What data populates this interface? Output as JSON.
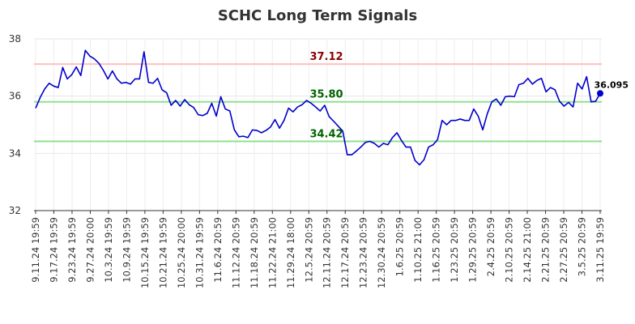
{
  "chart_data": {
    "type": "line",
    "title": "SCHC Long Term Signals",
    "xlabel": "",
    "ylabel": "",
    "ylim": [
      32,
      38
    ],
    "yticks": [
      32,
      34,
      36,
      38
    ],
    "grid": true,
    "x_tick_labels": [
      "9.11.24 19:59",
      "9.17.24 19:59",
      "9.23.24 19:59",
      "9.27.24 20:00",
      "10.3.24 19:59",
      "10.9.24 19:59",
      "10.15.24 19:59",
      "10.21.24 19:59",
      "10.25.24 20:00",
      "10.31.24 19:59",
      "11.6.24 20:59",
      "11.12.24 20:59",
      "11.18.24 20:59",
      "11.22.24 21:00",
      "11.29.24 18:00",
      "12.5.24 20:59",
      "12.11.24 20:59",
      "12.17.24 20:59",
      "12.23.24 20:59",
      "12.30.24 20:59",
      "1.6.25 20:59",
      "1.10.25 21:00",
      "1.16.25 20:59",
      "1.23.25 20:59",
      "1.29.25 20:59",
      "2.4.25 20:59",
      "2.10.25 20:59",
      "2.14.25 21:00",
      "2.21.25 20:59",
      "2.27.25 20:59",
      "3.5.25 20:59",
      "3.11.25 19:59"
    ],
    "reference_lines": [
      {
        "value": 37.12,
        "label": "37.12",
        "line_color": "#ffc0c0",
        "label_color": "#8b0000"
      },
      {
        "value": 35.8,
        "label": "35.80",
        "line_color": "#90e090",
        "label_color": "#006400"
      },
      {
        "value": 34.42,
        "label": "34.42",
        "line_color": "#90e090",
        "label_color": "#006400"
      }
    ],
    "last_value_label": "36.095",
    "series": [
      {
        "color": "#0000cc",
        "values": [
          35.58,
          35.95,
          36.25,
          36.45,
          36.35,
          36.3,
          37.0,
          36.6,
          36.75,
          37.02,
          36.72,
          37.6,
          37.4,
          37.3,
          37.15,
          36.9,
          36.6,
          36.88,
          36.6,
          36.45,
          36.48,
          36.42,
          36.6,
          36.6,
          37.55,
          36.48,
          36.45,
          36.62,
          36.22,
          36.12,
          35.68,
          35.85,
          35.65,
          35.88,
          35.7,
          35.6,
          35.35,
          35.32,
          35.4,
          35.75,
          35.3,
          35.98,
          35.55,
          35.48,
          34.82,
          34.58,
          34.6,
          34.55,
          34.82,
          34.8,
          34.72,
          34.8,
          34.92,
          35.18,
          34.88,
          35.15,
          35.58,
          35.45,
          35.62,
          35.7,
          35.85,
          35.75,
          35.62,
          35.48,
          35.68,
          35.28,
          35.12,
          34.95,
          34.78,
          33.95,
          33.95,
          34.08,
          34.22,
          34.38,
          34.42,
          34.35,
          34.22,
          34.35,
          34.3,
          34.55,
          34.72,
          34.45,
          34.22,
          34.22,
          33.75,
          33.6,
          33.78,
          34.22,
          34.3,
          34.48,
          35.15,
          35.0,
          35.15,
          35.15,
          35.2,
          35.15,
          35.15,
          35.55,
          35.3,
          34.82,
          35.38,
          35.8,
          35.9,
          35.68,
          35.98,
          36.0,
          35.98,
          36.4,
          36.45,
          36.62,
          36.42,
          36.55,
          36.62,
          36.15,
          36.3,
          36.22,
          35.82,
          35.65,
          35.78,
          35.62,
          36.45,
          36.25,
          36.68,
          35.8,
          35.82,
          36.095
        ]
      }
    ]
  }
}
